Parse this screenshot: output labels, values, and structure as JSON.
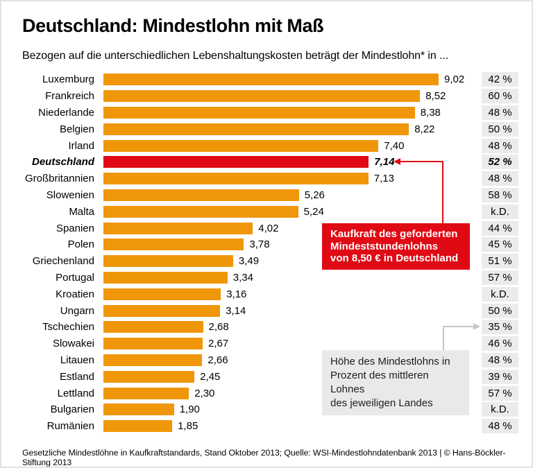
{
  "header": {
    "title": "Deutschland: Mindestlohn mit Maß",
    "subtitle": "Bezogen auf die unterschiedlichen Lebenshaltungskosten beträgt der Mindestlohn* in ..."
  },
  "chart_data": {
    "type": "bar",
    "orientation": "horizontal",
    "title": "Deutschland: Mindestlohn mit Maß",
    "subtitle": "Bezogen auf die unterschiedlichen Lebenshaltungskosten beträgt der Mindestlohn* in ...",
    "categories": [
      "Luxemburg",
      "Frankreich",
      "Niederlande",
      "Belgien",
      "Irland",
      "Deutschland",
      "Großbritannien",
      "Slowenien",
      "Malta",
      "Spanien",
      "Polen",
      "Griechenland",
      "Portugal",
      "Kroatien",
      "Ungarn",
      "Tschechien",
      "Slowakei",
      "Litauen",
      "Estland",
      "Lettland",
      "Bulgarien",
      "Rumänien"
    ],
    "values": [
      9.02,
      8.52,
      8.38,
      8.22,
      7.4,
      7.14,
      7.13,
      5.26,
      5.24,
      4.02,
      3.78,
      3.49,
      3.34,
      3.16,
      3.14,
      2.68,
      2.67,
      2.66,
      2.45,
      2.3,
      1.9,
      1.85
    ],
    "value_labels": [
      "9,02",
      "8,52",
      "8,38",
      "8,22",
      "7,40",
      "7,14",
      "7,13",
      "5,26",
      "5,24",
      "4,02",
      "3,78",
      "3,49",
      "3,34",
      "3,16",
      "3,14",
      "2,68",
      "2,67",
      "2,66",
      "2,45",
      "2,30",
      "1,90",
      "1,85"
    ],
    "percent_of_median_wage": [
      "42 %",
      "60 %",
      "48 %",
      "50 %",
      "48 %",
      "52 %",
      "48 %",
      "58 %",
      "k.D.",
      "44 %",
      "45 %",
      "51 %",
      "57 %",
      "k.D.",
      "50 %",
      "35 %",
      "46 %",
      "48 %",
      "39 %",
      "57 %",
      "k.D.",
      "48 %"
    ],
    "highlight_index": 5,
    "highlight_country": "Deutschland",
    "xlim": [
      0,
      10
    ],
    "grid": false,
    "legend": false
  },
  "annotations": {
    "red_box_text": "Kaufkraft des geforderten\nMindeststundenlohns\nvon 8,50 € in Deutschland",
    "gray_box_text": "Höhe des Mindestlohns in\nProzent des mittleren Lohnes\ndes jeweiligen Landes"
  },
  "footer": {
    "source_line": "Gesetzliche Mindestlöhne in Kaufkraftstandards, Stand Oktober 2013; Quelle: WSI-Mindestlohndatenbank 2013 | © Hans-Böckler-Stiftung 2013"
  },
  "colors": {
    "bar_orange": "#F09609",
    "highlight_red": "#E00A14",
    "percent_chip_bg": "#EBEBEB",
    "gray_box_bg": "#E9E9E9",
    "arrow_gray": "#C6C6C6"
  }
}
